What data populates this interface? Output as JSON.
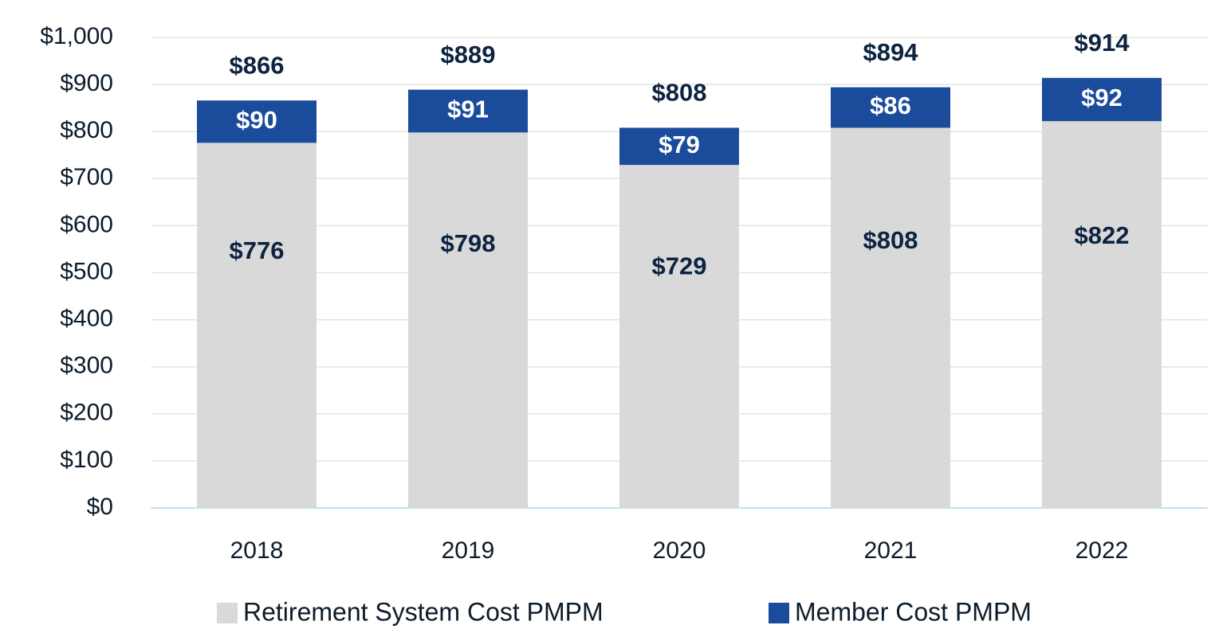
{
  "chart_data": {
    "type": "stacked_bar",
    "categories": [
      "2018",
      "2019",
      "2020",
      "2021",
      "2022"
    ],
    "series": [
      {
        "name": "Retirement System Cost PMPM",
        "color": "#d9d9d9",
        "values": [
          776,
          798,
          729,
          808,
          822
        ],
        "value_labels": [
          "$776",
          "$798",
          "$729",
          "$808",
          "$822"
        ]
      },
      {
        "name": "Member Cost PMPM",
        "color": "#1b4b9b",
        "values": [
          90,
          91,
          79,
          86,
          92
        ],
        "value_labels": [
          "$90",
          "$91",
          "$79",
          "$86",
          "$92"
        ]
      }
    ],
    "totals": [
      866,
      889,
      808,
      894,
      914
    ],
    "total_labels": [
      "$866",
      "$889",
      "$808",
      "$894",
      "$914"
    ],
    "ylim": [
      0,
      1000
    ],
    "yticks": [
      {
        "value": 0,
        "label": "$0"
      },
      {
        "value": 100,
        "label": "$100"
      },
      {
        "value": 200,
        "label": "$200"
      },
      {
        "value": 300,
        "label": "$300"
      },
      {
        "value": 400,
        "label": "$400"
      },
      {
        "value": 500,
        "label": "$500"
      },
      {
        "value": 600,
        "label": "$600"
      },
      {
        "value": 700,
        "label": "$700"
      },
      {
        "value": 800,
        "label": "$800"
      },
      {
        "value": 900,
        "label": "$900"
      },
      {
        "value": 1000,
        "label": "$1,000"
      }
    ],
    "grid": true,
    "legend": "bottom"
  }
}
